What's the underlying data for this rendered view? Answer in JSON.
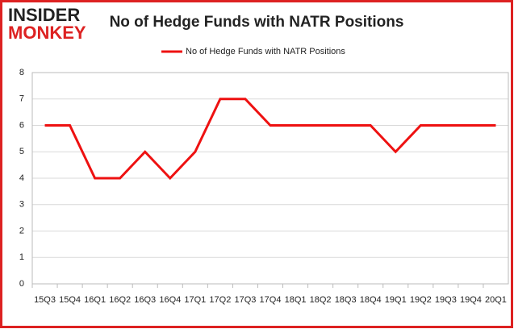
{
  "logo": {
    "line1": "INSIDER",
    "line2": "MONKEY"
  },
  "chart_data": {
    "type": "line",
    "title": "No of Hedge Funds with NATR Positions",
    "categories": [
      "15Q3",
      "15Q4",
      "16Q1",
      "16Q2",
      "16Q3",
      "16Q4",
      "17Q1",
      "17Q2",
      "17Q3",
      "17Q4",
      "18Q1",
      "18Q2",
      "18Q3",
      "18Q4",
      "19Q1",
      "19Q2",
      "19Q3",
      "19Q4",
      "20Q1"
    ],
    "series": [
      {
        "name": "No of Hedge Funds with NATR Positions",
        "color": "#ee1111",
        "values": [
          6,
          6,
          4,
          4,
          5,
          4,
          5,
          7,
          7,
          6,
          6,
          6,
          6,
          6,
          5,
          6,
          6,
          6,
          6
        ]
      }
    ],
    "ylim": [
      0,
      8
    ],
    "yticks": [
      0,
      1,
      2,
      3,
      4,
      5,
      6,
      7,
      8
    ],
    "grid": true,
    "legend": "top"
  }
}
